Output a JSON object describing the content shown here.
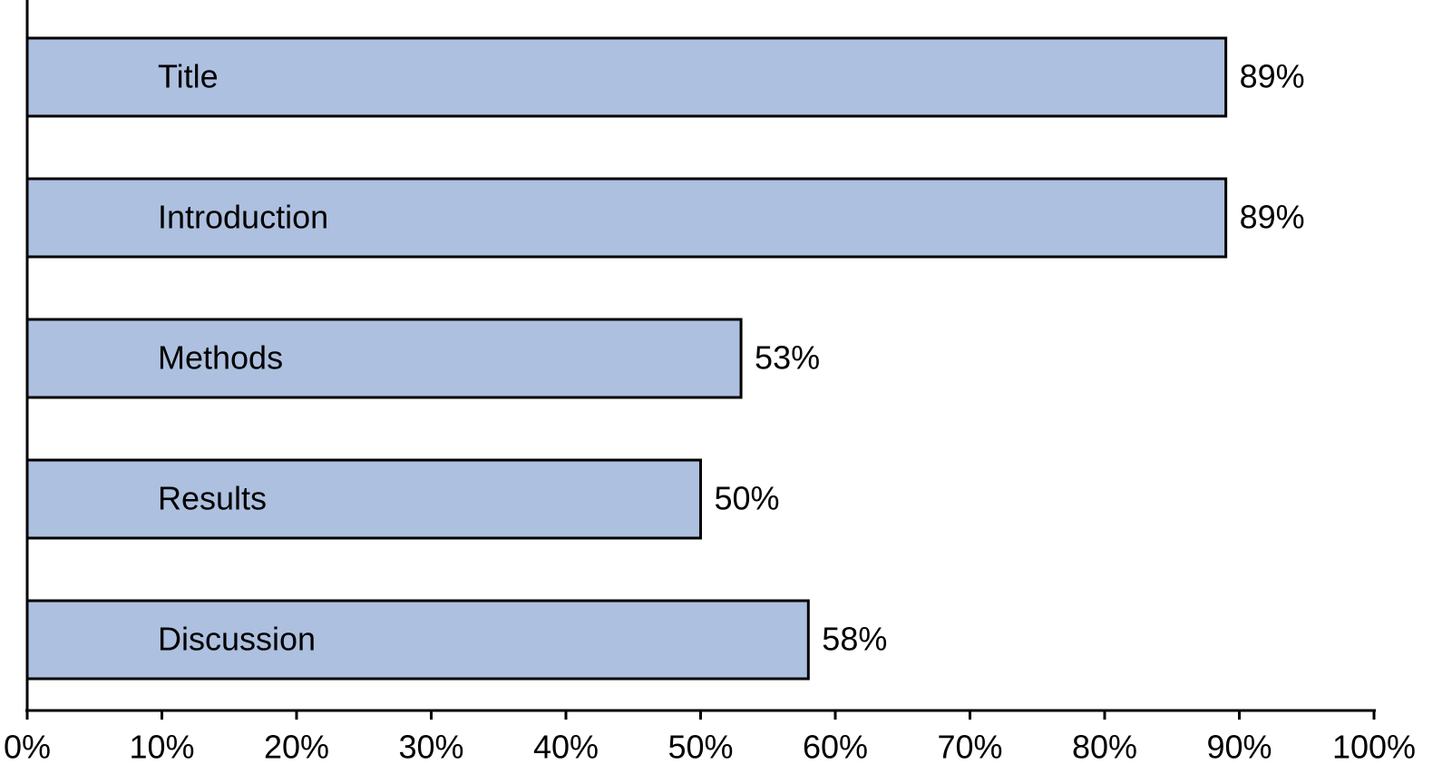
{
  "chart_data": {
    "type": "hbar",
    "categories": [
      "Title",
      "Introduction",
      "Methods",
      "Results",
      "Discussion"
    ],
    "values": [
      89,
      89,
      53,
      50,
      58
    ],
    "value_labels": [
      "89%",
      "89%",
      "53%",
      "50%",
      "58%"
    ],
    "color": "#aec0df",
    "xlim": [
      0,
      100
    ],
    "xticks": [
      {
        "value": 0,
        "label": "0%"
      },
      {
        "value": 10,
        "label": "10%"
      },
      {
        "value": 20,
        "label": "20%"
      },
      {
        "value": 30,
        "label": "30%"
      },
      {
        "value": 40,
        "label": "40%"
      },
      {
        "value": 50,
        "label": "50%"
      },
      {
        "value": 60,
        "label": "60%"
      },
      {
        "value": 70,
        "label": "70%"
      },
      {
        "value": 80,
        "label": "80%"
      },
      {
        "value": 90,
        "label": "90%"
      },
      {
        "value": 100,
        "label": "100%"
      }
    ],
    "grid": false
  }
}
